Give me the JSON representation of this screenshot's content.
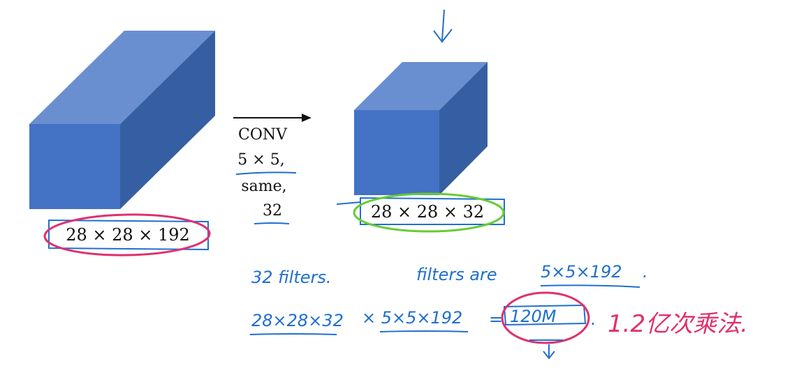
{
  "colors": {
    "cube_front": "#4472c4",
    "cube_top": "#6a8fd0",
    "cube_side": "#365fa3",
    "ink_blue": "#1f6fd0",
    "ink_pink": "#e0306e",
    "ink_green": "#66cc33",
    "text": "#111111"
  },
  "input_volume": {
    "label": "28 × 28 × 192"
  },
  "conv": {
    "op": "CONV",
    "filter_size": "5 × 5,",
    "padding": "same,",
    "num_filters": "32"
  },
  "output_volume": {
    "label": "28 × 28 × 32"
  },
  "notes": {
    "filters_count": "32 filters.",
    "filter_shape_prefix": "filters are",
    "filter_shape": "5×5×192",
    "filter_shape_end": ".",
    "output_term": "28×28×32",
    "times_term": "× 5×5×192",
    "equals": "=",
    "result": "120M",
    "result_end": ".",
    "chinese_note": "1.2亿次乘法."
  },
  "icons": {
    "top_arrow": "arrow-down-icon",
    "bottom_arrow": "arrow-down-icon",
    "conv_arrow": "arrow-right-icon"
  }
}
